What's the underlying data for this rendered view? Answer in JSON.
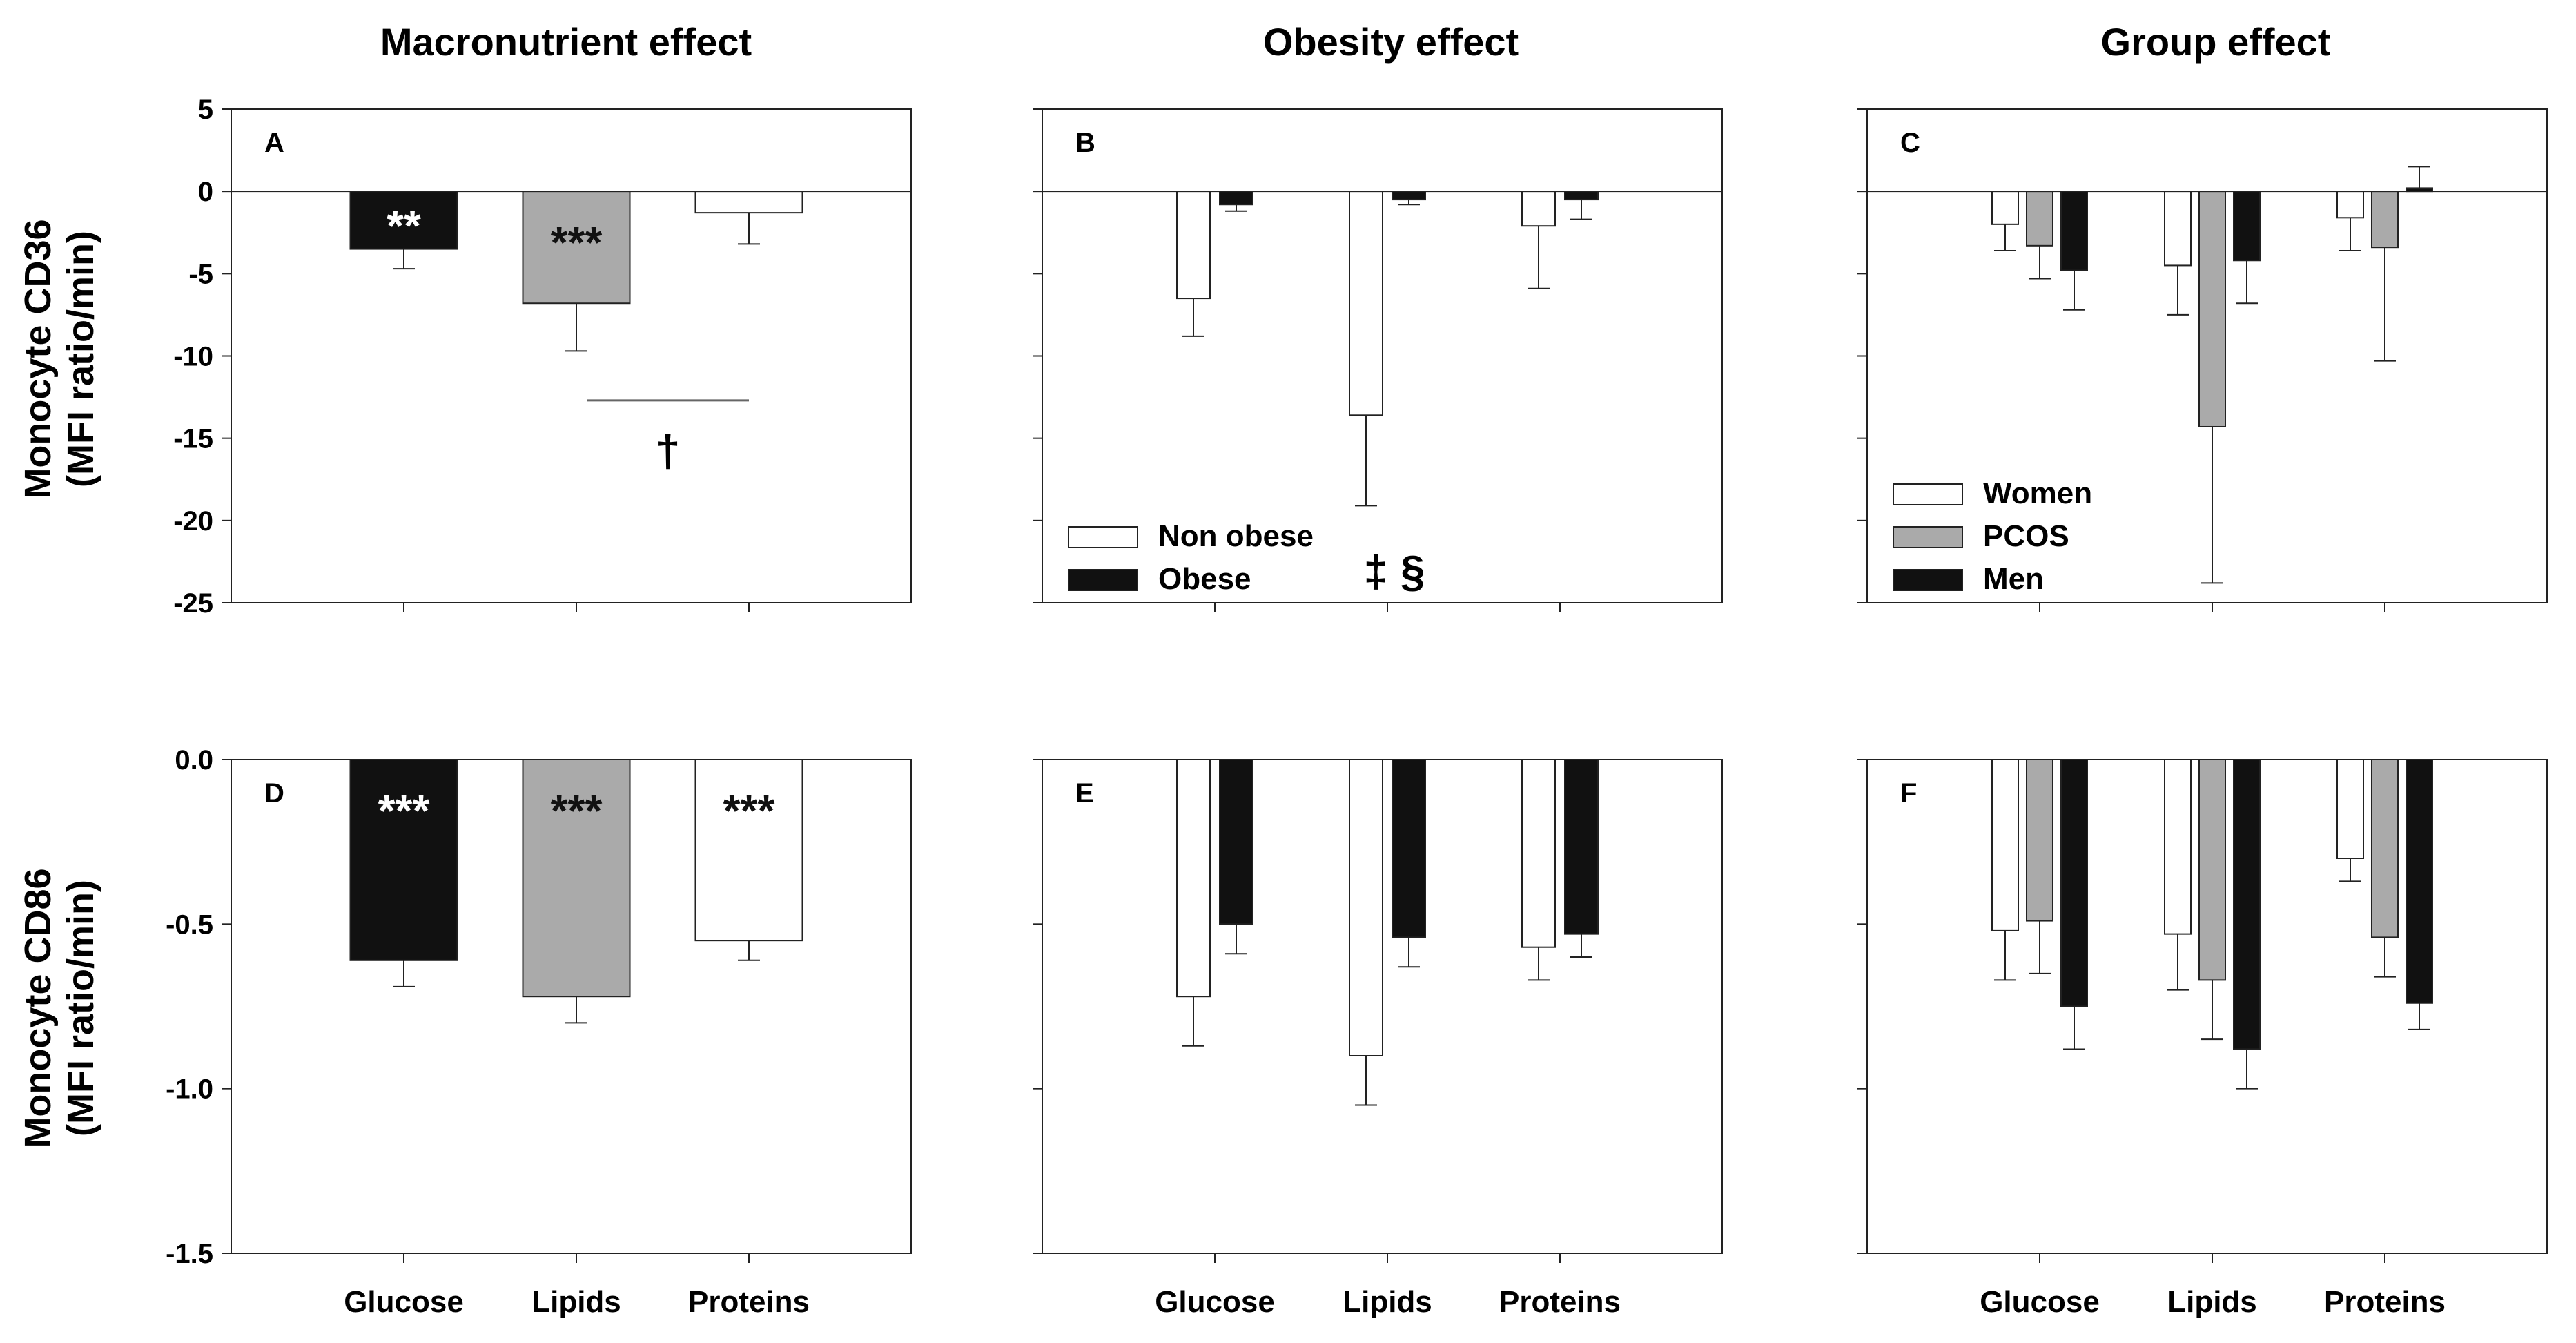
{
  "column_titles": [
    "Macronutrient effect",
    "Obesity effect",
    "Group effect"
  ],
  "row_ylabels": [
    [
      "Monocyte CD36",
      "(MFI ratio/min)"
    ],
    [
      "Monocyte CD86",
      "(MFI ratio/min)"
    ]
  ],
  "colors": {
    "white": "#ffffff",
    "gray": "#aaaaaa",
    "black": "#111111",
    "axis": "#222222"
  },
  "chart_data": [
    {
      "panel": "A",
      "type": "bar",
      "row": 0,
      "col": 0,
      "ylim": [
        -25,
        5
      ],
      "yticks": [
        5,
        0,
        -5,
        -10,
        -15,
        -20,
        -25
      ],
      "ytick_format": "int",
      "categories": [
        "Glucose",
        "Lipids",
        "Proteins"
      ],
      "series": [
        {
          "name": "Glucose",
          "color": "black",
          "values": [
            -3.5,
            null,
            null
          ],
          "errors": [
            1.2,
            null,
            null
          ],
          "labels": [
            "**",
            null,
            null
          ],
          "label_color": "#ffffff"
        },
        {
          "name": "Lipids",
          "color": "gray",
          "values": [
            null,
            -6.8,
            null
          ],
          "errors": [
            null,
            2.9,
            null
          ],
          "labels": [
            null,
            "***",
            null
          ],
          "label_color": "#111111"
        },
        {
          "name": "Proteins",
          "color": "white",
          "values": [
            null,
            null,
            -1.3
          ],
          "errors": [
            null,
            null,
            1.9
          ],
          "labels": [
            null,
            null,
            null
          ],
          "label_color": "#111111"
        }
      ],
      "single_bar_per_category": true,
      "annotations": [
        {
          "type": "bracket",
          "from_cat": 1,
          "to_cat": 2,
          "y": -12.7,
          "symbol": "†"
        }
      ]
    },
    {
      "panel": "B",
      "type": "bar",
      "row": 0,
      "col": 1,
      "ylim": [
        -25,
        5
      ],
      "yticks": [
        5,
        0,
        -5,
        -10,
        -15,
        -20,
        -25
      ],
      "ytick_format": "int",
      "categories": [
        "Glucose",
        "Lipids",
        "Proteins"
      ],
      "series": [
        {
          "name": "Non obese",
          "color": "white",
          "values": [
            -6.5,
            -13.6,
            -2.1
          ],
          "errors": [
            2.3,
            5.5,
            3.8
          ]
        },
        {
          "name": "Obese",
          "color": "black",
          "values": [
            -0.8,
            -0.5,
            -0.5
          ],
          "errors": [
            0.4,
            0.3,
            1.2
          ]
        }
      ],
      "legend": {
        "entries": [
          "Non obese",
          "Obese"
        ],
        "placement": "bottom-left"
      },
      "annotations": [
        {
          "type": "text",
          "x_cat": 1,
          "y": -23,
          "text": "‡  §"
        }
      ]
    },
    {
      "panel": "C",
      "type": "bar",
      "row": 0,
      "col": 2,
      "ylim": [
        -25,
        5
      ],
      "yticks": [
        5,
        0,
        -5,
        -10,
        -15,
        -20,
        -25
      ],
      "ytick_format": "int",
      "categories": [
        "Glucose",
        "Lipids",
        "Proteins"
      ],
      "series": [
        {
          "name": "Women",
          "color": "white",
          "values": [
            -2.0,
            -4.5,
            -1.6
          ],
          "errors": [
            1.6,
            3.0,
            2.0
          ]
        },
        {
          "name": "PCOS",
          "color": "gray",
          "values": [
            -3.3,
            -14.3,
            -3.4
          ],
          "errors": [
            2.0,
            9.5,
            6.9
          ]
        },
        {
          "name": "Men",
          "color": "black",
          "values": [
            -4.8,
            -4.2,
            0.2
          ],
          "errors": [
            2.4,
            2.6,
            1.3
          ]
        }
      ],
      "legend": {
        "entries": [
          "Women",
          "PCOS",
          "Men"
        ],
        "placement": "bottom-left"
      }
    },
    {
      "panel": "D",
      "type": "bar",
      "row": 1,
      "col": 0,
      "ylim": [
        -1.5,
        0.0
      ],
      "yticks": [
        0.0,
        -0.5,
        -1.0,
        -1.5
      ],
      "ytick_format": "1dp",
      "categories": [
        "Glucose",
        "Lipids",
        "Proteins"
      ],
      "series": [
        {
          "name": "Glucose",
          "color": "black",
          "values": [
            -0.61,
            null,
            null
          ],
          "errors": [
            0.08,
            null,
            null
          ],
          "labels": [
            "***",
            null,
            null
          ],
          "label_color": "#ffffff"
        },
        {
          "name": "Lipids",
          "color": "gray",
          "values": [
            null,
            -0.72,
            null
          ],
          "errors": [
            null,
            0.08,
            null
          ],
          "labels": [
            null,
            "***",
            null
          ],
          "label_color": "#111111"
        },
        {
          "name": "Proteins",
          "color": "white",
          "values": [
            null,
            null,
            -0.55
          ],
          "errors": [
            null,
            null,
            0.06
          ],
          "labels": [
            null,
            null,
            "***"
          ],
          "label_color": "#111111"
        }
      ],
      "single_bar_per_category": true
    },
    {
      "panel": "E",
      "type": "bar",
      "row": 1,
      "col": 1,
      "ylim": [
        -1.5,
        0.0
      ],
      "yticks": [
        0.0,
        -0.5,
        -1.0,
        -1.5
      ],
      "ytick_format": "1dp",
      "categories": [
        "Glucose",
        "Lipids",
        "Proteins"
      ],
      "series": [
        {
          "name": "Non obese",
          "color": "white",
          "values": [
            -0.72,
            -0.9,
            -0.57
          ],
          "errors": [
            0.15,
            0.15,
            0.1
          ]
        },
        {
          "name": "Obese",
          "color": "black",
          "values": [
            -0.5,
            -0.54,
            -0.53
          ],
          "errors": [
            0.09,
            0.09,
            0.07
          ]
        }
      ]
    },
    {
      "panel": "F",
      "type": "bar",
      "row": 1,
      "col": 2,
      "ylim": [
        -1.5,
        0.0
      ],
      "yticks": [
        0.0,
        -0.5,
        -1.0,
        -1.5
      ],
      "ytick_format": "1dp",
      "categories": [
        "Glucose",
        "Lipids",
        "Proteins"
      ],
      "series": [
        {
          "name": "Women",
          "color": "white",
          "values": [
            -0.52,
            -0.53,
            -0.3
          ],
          "errors": [
            0.15,
            0.17,
            0.07
          ]
        },
        {
          "name": "PCOS",
          "color": "gray",
          "values": [
            -0.49,
            -0.67,
            -0.54
          ],
          "errors": [
            0.16,
            0.18,
            0.12
          ]
        },
        {
          "name": "Men",
          "color": "black",
          "values": [
            -0.75,
            -0.88,
            -0.74
          ],
          "errors": [
            0.13,
            0.12,
            0.08
          ]
        }
      ]
    }
  ]
}
